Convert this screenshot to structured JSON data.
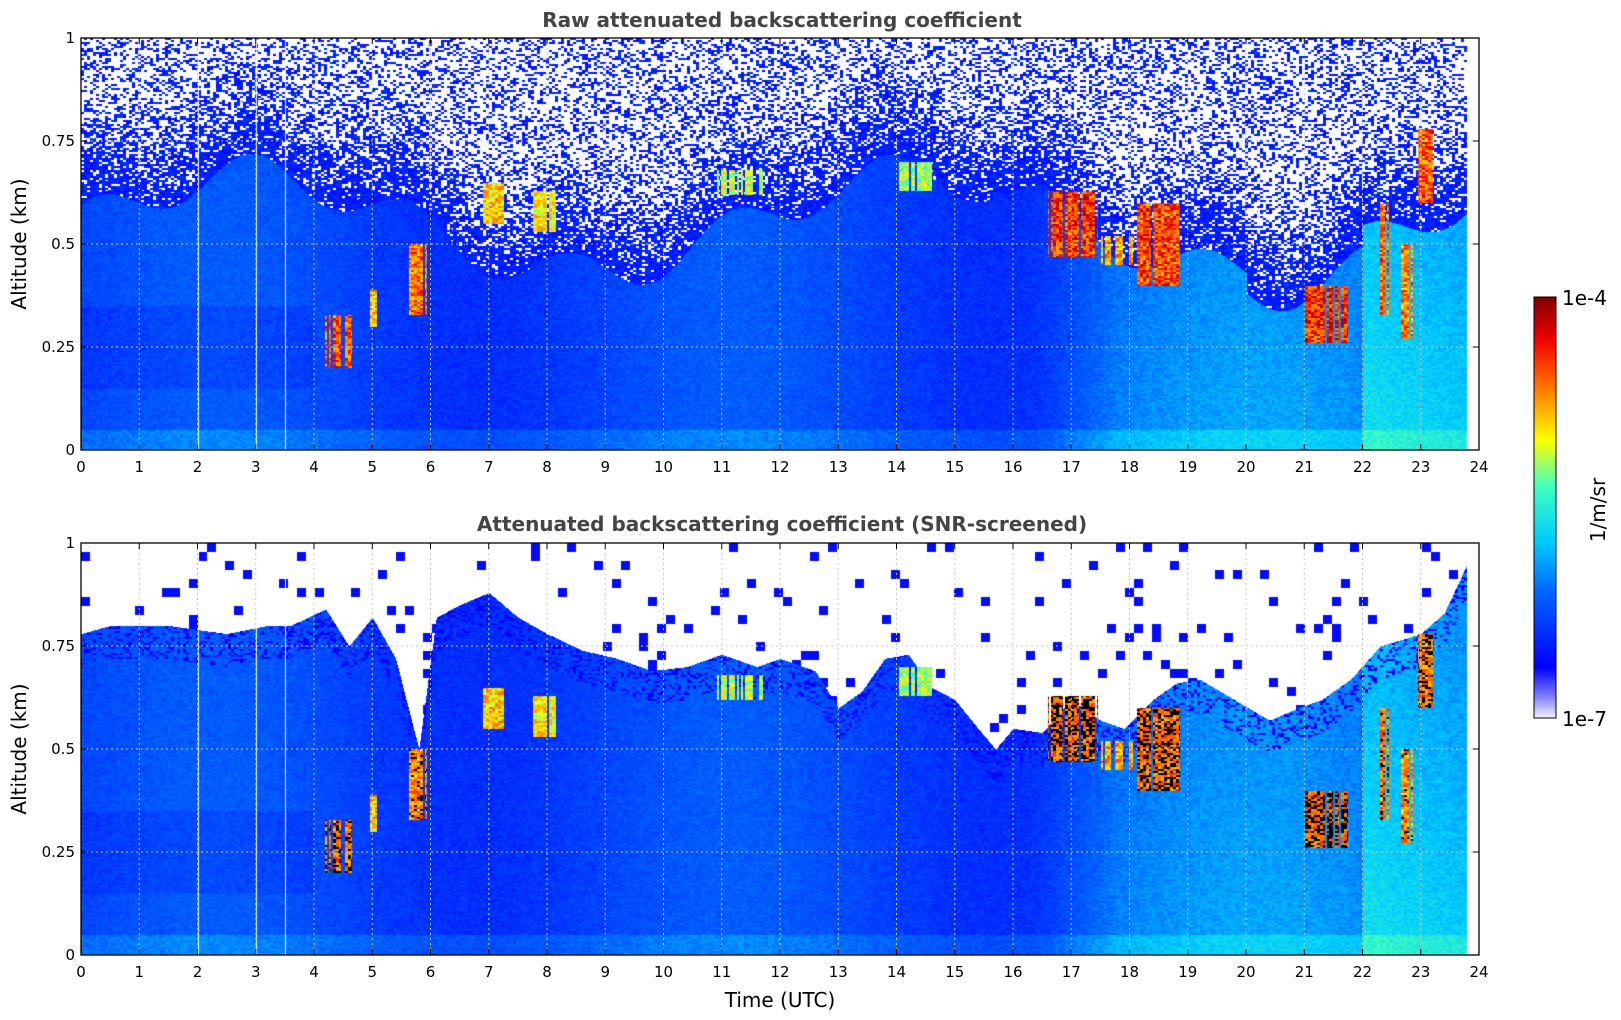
{
  "chart_data": [
    {
      "type": "heatmap",
      "title": "Raw attenuated backscattering coefficient",
      "xlabel": "",
      "ylabel": "Altitude (km)",
      "xlim": [
        0,
        24
      ],
      "ylim": [
        0,
        1
      ],
      "x_ticks": [
        "0",
        "1",
        "2",
        "3",
        "4",
        "5",
        "6",
        "7",
        "8",
        "9",
        "10",
        "11",
        "12",
        "13",
        "14",
        "15",
        "16",
        "17",
        "18",
        "19",
        "20",
        "21",
        "22",
        "23",
        "24"
      ],
      "y_ticks": [
        "0",
        "0.25",
        "0.5",
        "0.75",
        "1"
      ],
      "y_tick_values": [
        0,
        0.25,
        0.5,
        0.75,
        1
      ],
      "grid": true,
      "data_end_hour": 23.8,
      "gap_hours": [
        2.0,
        3.0,
        3.5
      ],
      "screened": false,
      "features": [
        {
          "t0": 4.15,
          "t1": 4.65,
          "y0": 0.2,
          "y1": 0.33,
          "level": 0.93
        },
        {
          "t0": 4.95,
          "t1": 5.1,
          "y0": 0.3,
          "y1": 0.39,
          "level": 0.82
        },
        {
          "t0": 5.6,
          "t1": 5.95,
          "y0": 0.33,
          "y1": 0.5,
          "level": 0.9
        },
        {
          "t0": 6.9,
          "t1": 7.25,
          "y0": 0.55,
          "y1": 0.65,
          "level": 0.8
        },
        {
          "t0": 7.75,
          "t1": 8.15,
          "y0": 0.53,
          "y1": 0.63,
          "level": 0.78
        },
        {
          "t0": 10.9,
          "t1": 11.8,
          "y0": 0.62,
          "y1": 0.68,
          "level": 0.72
        },
        {
          "t0": 14.0,
          "t1": 14.6,
          "y0": 0.63,
          "y1": 0.7,
          "level": 0.7
        },
        {
          "t0": 16.6,
          "t1": 17.45,
          "y0": 0.47,
          "y1": 0.63,
          "level": 0.97
        },
        {
          "t0": 17.5,
          "t1": 18.1,
          "y0": 0.45,
          "y1": 0.52,
          "level": 0.85
        },
        {
          "t0": 18.1,
          "t1": 18.85,
          "y0": 0.4,
          "y1": 0.6,
          "level": 0.95
        },
        {
          "t0": 21.0,
          "t1": 21.75,
          "y0": 0.26,
          "y1": 0.4,
          "level": 0.98
        },
        {
          "t0": 22.3,
          "t1": 22.45,
          "y0": 0.33,
          "y1": 0.6,
          "level": 0.92
        },
        {
          "t0": 22.65,
          "t1": 22.85,
          "y0": 0.27,
          "y1": 0.5,
          "level": 0.88
        },
        {
          "t0": 22.95,
          "t1": 23.2,
          "y0": 0.6,
          "y1": 0.78,
          "level": 0.93
        }
      ]
    },
    {
      "type": "heatmap",
      "title": "Attenuated backscattering coefficient (SNR-screened)",
      "xlabel": "Time (UTC)",
      "ylabel": "Altitude (km)",
      "xlim": [
        0,
        24
      ],
      "ylim": [
        0,
        1
      ],
      "x_ticks": [
        "0",
        "1",
        "2",
        "3",
        "4",
        "5",
        "6",
        "7",
        "8",
        "9",
        "10",
        "11",
        "12",
        "13",
        "14",
        "15",
        "16",
        "17",
        "18",
        "19",
        "20",
        "21",
        "22",
        "23",
        "24"
      ],
      "y_ticks": [
        "0",
        "0.25",
        "0.5",
        "0.75",
        "1"
      ],
      "y_tick_values": [
        0,
        0.25,
        0.5,
        0.75,
        1
      ],
      "grid": true,
      "data_end_hour": 23.8,
      "gap_hours": [
        2.0,
        3.0,
        3.5
      ],
      "screened": true,
      "signal_top_km": [
        [
          0,
          0.78
        ],
        [
          0.5,
          0.8
        ],
        [
          1.5,
          0.8
        ],
        [
          2.5,
          0.78
        ],
        [
          3.2,
          0.8
        ],
        [
          3.6,
          0.8
        ],
        [
          4.2,
          0.84
        ],
        [
          4.6,
          0.75
        ],
        [
          5.0,
          0.82
        ],
        [
          5.4,
          0.72
        ],
        [
          5.8,
          0.5
        ],
        [
          6.1,
          0.82
        ],
        [
          6.5,
          0.85
        ],
        [
          7.0,
          0.88
        ],
        [
          7.5,
          0.82
        ],
        [
          8.0,
          0.78
        ],
        [
          8.6,
          0.74
        ],
        [
          9.2,
          0.72
        ],
        [
          9.8,
          0.69
        ],
        [
          10.4,
          0.7
        ],
        [
          11.0,
          0.73
        ],
        [
          11.6,
          0.7
        ],
        [
          12.0,
          0.72
        ],
        [
          12.6,
          0.69
        ],
        [
          13.0,
          0.6
        ],
        [
          13.4,
          0.64
        ],
        [
          13.8,
          0.72
        ],
        [
          14.2,
          0.73
        ],
        [
          14.6,
          0.65
        ],
        [
          15.0,
          0.62
        ],
        [
          15.4,
          0.55
        ],
        [
          15.7,
          0.5
        ],
        [
          16.0,
          0.55
        ],
        [
          16.5,
          0.54
        ],
        [
          17.0,
          0.62
        ],
        [
          17.5,
          0.57
        ],
        [
          17.9,
          0.55
        ],
        [
          18.4,
          0.62
        ],
        [
          18.8,
          0.66
        ],
        [
          19.2,
          0.67
        ],
        [
          19.8,
          0.62
        ],
        [
          20.4,
          0.57
        ],
        [
          20.9,
          0.6
        ],
        [
          21.3,
          0.62
        ],
        [
          21.8,
          0.67
        ],
        [
          22.3,
          0.75
        ],
        [
          23.0,
          0.78
        ],
        [
          23.4,
          0.83
        ],
        [
          23.8,
          0.95
        ]
      ],
      "features": [
        {
          "t0": 4.15,
          "t1": 4.65,
          "y0": 0.2,
          "y1": 0.33,
          "level": 0.93
        },
        {
          "t0": 4.95,
          "t1": 5.1,
          "y0": 0.3,
          "y1": 0.39,
          "level": 0.82
        },
        {
          "t0": 5.6,
          "t1": 5.95,
          "y0": 0.33,
          "y1": 0.5,
          "level": 0.9
        },
        {
          "t0": 6.9,
          "t1": 7.25,
          "y0": 0.55,
          "y1": 0.65,
          "level": 0.8
        },
        {
          "t0": 7.75,
          "t1": 8.15,
          "y0": 0.53,
          "y1": 0.63,
          "level": 0.78
        },
        {
          "t0": 10.9,
          "t1": 11.8,
          "y0": 0.62,
          "y1": 0.68,
          "level": 0.72
        },
        {
          "t0": 14.0,
          "t1": 14.6,
          "y0": 0.63,
          "y1": 0.7,
          "level": 0.7
        },
        {
          "t0": 16.6,
          "t1": 17.45,
          "y0": 0.47,
          "y1": 0.63,
          "level": 0.97
        },
        {
          "t0": 17.5,
          "t1": 18.1,
          "y0": 0.45,
          "y1": 0.52,
          "level": 0.85
        },
        {
          "t0": 18.1,
          "t1": 18.85,
          "y0": 0.4,
          "y1": 0.6,
          "level": 0.95
        },
        {
          "t0": 21.0,
          "t1": 21.75,
          "y0": 0.26,
          "y1": 0.4,
          "level": 0.98
        },
        {
          "t0": 22.3,
          "t1": 22.45,
          "y0": 0.33,
          "y1": 0.6,
          "level": 0.92
        },
        {
          "t0": 22.65,
          "t1": 22.85,
          "y0": 0.27,
          "y1": 0.5,
          "level": 0.88
        },
        {
          "t0": 22.95,
          "t1": 23.2,
          "y0": 0.6,
          "y1": 0.78,
          "level": 0.93
        }
      ]
    }
  ],
  "colorbar": {
    "label": "1/m/sr",
    "min_label": "1e-7",
    "max_label": "1e-4",
    "colormap": "jet"
  },
  "colors": {
    "background_blue": "#0a3cf0",
    "low_blue": "#1b64ff",
    "cyan": "#00d2ff",
    "grid": "#c8c8c8",
    "saturated": "#000000"
  }
}
